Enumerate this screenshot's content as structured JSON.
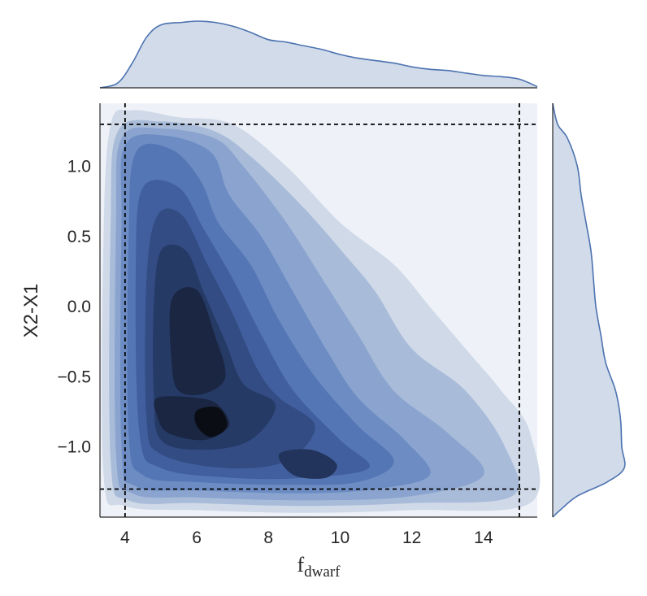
{
  "chart_data": {
    "type": "heatmap",
    "kind": "joint-kde-contour",
    "xlabel": "f",
    "xlabel_subscript": "dwarf",
    "ylabel": "X2-X1",
    "xlim": [
      3.3,
      15.5
    ],
    "ylim": [
      -1.5,
      1.45
    ],
    "xticks": [
      4,
      6,
      8,
      10,
      12,
      14
    ],
    "xtick_labels": [
      "4",
      "6",
      "8",
      "10",
      "12",
      "14"
    ],
    "yticks": [
      1.0,
      0.5,
      0.0,
      -0.5,
      -1.0
    ],
    "ytick_labels": [
      "1.0",
      "0.5",
      "0.0",
      "−0.5",
      "−1.0"
    ],
    "reference_lines": {
      "vertical_x": [
        4,
        15
      ],
      "horizontal_y": [
        1.3,
        -1.3
      ],
      "style": "dashed",
      "color": "#000000"
    },
    "marginal_x": {
      "points": [
        [
          3.3,
          0.0
        ],
        [
          3.8,
          0.04
        ],
        [
          4.2,
          0.2
        ],
        [
          4.6,
          0.41
        ],
        [
          5.0,
          0.51
        ],
        [
          5.6,
          0.53
        ],
        [
          6.0,
          0.54
        ],
        [
          6.5,
          0.53
        ],
        [
          7.0,
          0.5
        ],
        [
          7.5,
          0.45
        ],
        [
          8.0,
          0.39
        ],
        [
          8.5,
          0.37
        ],
        [
          9.0,
          0.34
        ],
        [
          9.5,
          0.31
        ],
        [
          10.0,
          0.27
        ],
        [
          10.5,
          0.24
        ],
        [
          11.0,
          0.22
        ],
        [
          11.5,
          0.2
        ],
        [
          12.0,
          0.17
        ],
        [
          12.5,
          0.15
        ],
        [
          13.0,
          0.14
        ],
        [
          13.5,
          0.12
        ],
        [
          14.0,
          0.1
        ],
        [
          14.5,
          0.09
        ],
        [
          15.0,
          0.07
        ],
        [
          15.5,
          0.01
        ]
      ]
    },
    "marginal_y": {
      "points": [
        [
          1.45,
          0.0
        ],
        [
          1.3,
          0.04
        ],
        [
          1.2,
          0.12
        ],
        [
          1.0,
          0.2
        ],
        [
          0.8,
          0.23
        ],
        [
          0.6,
          0.27
        ],
        [
          0.4,
          0.31
        ],
        [
          0.2,
          0.33
        ],
        [
          0.0,
          0.35
        ],
        [
          -0.2,
          0.39
        ],
        [
          -0.4,
          0.43
        ],
        [
          -0.6,
          0.51
        ],
        [
          -0.8,
          0.55
        ],
        [
          -1.0,
          0.56
        ],
        [
          -1.15,
          0.58
        ],
        [
          -1.25,
          0.44
        ],
        [
          -1.35,
          0.2
        ],
        [
          -1.45,
          0.06
        ],
        [
          -1.5,
          0.0
        ]
      ]
    },
    "contour_levels": [
      {
        "level": 1,
        "color": "#cfd9e8",
        "polygon": [
          [
            3.6,
            1.3
          ],
          [
            4.2,
            1.4
          ],
          [
            5.5,
            1.35
          ],
          [
            7.0,
            1.3
          ],
          [
            8.5,
            1.0
          ],
          [
            10.0,
            0.6
          ],
          [
            11.5,
            0.3
          ],
          [
            12.5,
            0.0
          ],
          [
            13.5,
            -0.3
          ],
          [
            14.5,
            -0.6
          ],
          [
            15.3,
            -0.9
          ],
          [
            15.3,
            -1.4
          ],
          [
            12.0,
            -1.45
          ],
          [
            9.0,
            -1.47
          ],
          [
            6.0,
            -1.45
          ],
          [
            4.0,
            -1.42
          ],
          [
            3.4,
            -1.2
          ],
          [
            3.4,
            0.5
          ]
        ]
      },
      {
        "level": 2,
        "color": "#a8bbd9",
        "polygon": [
          [
            3.8,
            1.25
          ],
          [
            5.0,
            1.32
          ],
          [
            6.5,
            1.25
          ],
          [
            7.6,
            1.05
          ],
          [
            9.0,
            0.7
          ],
          [
            10.2,
            0.35
          ],
          [
            11.0,
            0.1
          ],
          [
            12.0,
            -0.3
          ],
          [
            13.5,
            -0.6
          ],
          [
            14.6,
            -1.0
          ],
          [
            14.8,
            -1.35
          ],
          [
            12.0,
            -1.4
          ],
          [
            9.0,
            -1.42
          ],
          [
            6.0,
            -1.4
          ],
          [
            4.1,
            -1.38
          ],
          [
            3.6,
            -1.1
          ],
          [
            3.6,
            0.6
          ]
        ]
      },
      {
        "level": 3,
        "color": "#8aa4cf",
        "polygon": [
          [
            3.9,
            1.2
          ],
          [
            5.0,
            1.27
          ],
          [
            6.5,
            1.2
          ],
          [
            7.3,
            1.0
          ],
          [
            8.5,
            0.6
          ],
          [
            9.5,
            0.2
          ],
          [
            10.5,
            -0.2
          ],
          [
            11.5,
            -0.6
          ],
          [
            13.0,
            -0.9
          ],
          [
            14.0,
            -1.2
          ],
          [
            12.0,
            -1.35
          ],
          [
            9.0,
            -1.38
          ],
          [
            6.0,
            -1.36
          ],
          [
            4.2,
            -1.33
          ],
          [
            3.75,
            -1.05
          ],
          [
            3.75,
            0.6
          ]
        ]
      },
      {
        "level": 4,
        "color": "#6c8cc3",
        "polygon": [
          [
            4.0,
            1.15
          ],
          [
            5.1,
            1.22
          ],
          [
            6.4,
            1.1
          ],
          [
            6.9,
            0.8
          ],
          [
            7.8,
            0.5
          ],
          [
            8.7,
            0.1
          ],
          [
            9.6,
            -0.3
          ],
          [
            10.5,
            -0.65
          ],
          [
            11.8,
            -0.95
          ],
          [
            12.5,
            -1.2
          ],
          [
            11.0,
            -1.3
          ],
          [
            9.0,
            -1.33
          ],
          [
            6.0,
            -1.31
          ],
          [
            4.3,
            -1.28
          ],
          [
            3.9,
            -1.0
          ],
          [
            3.9,
            0.6
          ]
        ]
      },
      {
        "level": 5,
        "color": "#5476b4",
        "polygon": [
          [
            4.3,
            1.1
          ],
          [
            5.3,
            1.12
          ],
          [
            6.1,
            0.9
          ],
          [
            6.6,
            0.6
          ],
          [
            7.5,
            0.3
          ],
          [
            8.3,
            -0.1
          ],
          [
            9.3,
            -0.5
          ],
          [
            10.5,
            -0.85
          ],
          [
            11.5,
            -1.1
          ],
          [
            10.5,
            -1.25
          ],
          [
            8.5,
            -1.27
          ],
          [
            6.0,
            -1.25
          ],
          [
            4.5,
            -1.2
          ],
          [
            4.1,
            -0.9
          ],
          [
            4.1,
            0.5
          ]
        ]
      },
      {
        "level": 6,
        "color": "#415f9e",
        "polygon": [
          [
            4.5,
            0.85
          ],
          [
            5.5,
            0.85
          ],
          [
            6.2,
            0.55
          ],
          [
            7.0,
            0.2
          ],
          [
            7.8,
            -0.2
          ],
          [
            8.7,
            -0.6
          ],
          [
            10.0,
            -0.95
          ],
          [
            10.8,
            -1.15
          ],
          [
            9.0,
            -1.22
          ],
          [
            7.0,
            -1.22
          ],
          [
            5.0,
            -1.15
          ],
          [
            4.4,
            -0.9
          ],
          [
            4.3,
            0.3
          ]
        ]
      },
      {
        "level": 7,
        "color": "#334c84",
        "polygon": [
          [
            4.9,
            0.65
          ],
          [
            5.6,
            0.65
          ],
          [
            6.3,
            0.3
          ],
          [
            7.0,
            -0.05
          ],
          [
            7.7,
            -0.45
          ],
          [
            8.3,
            -0.65
          ],
          [
            9.3,
            -0.85
          ],
          [
            8.5,
            -1.1
          ],
          [
            6.8,
            -1.15
          ],
          [
            5.0,
            -1.05
          ],
          [
            4.6,
            -0.8
          ],
          [
            4.6,
            0.2
          ]
        ]
      },
      {
        "level": 8,
        "color": "#263a66",
        "polygon": [
          [
            5.0,
            0.4
          ],
          [
            5.7,
            0.4
          ],
          [
            6.2,
            0.1
          ],
          [
            6.8,
            -0.25
          ],
          [
            7.3,
            -0.55
          ],
          [
            8.2,
            -0.7
          ],
          [
            7.5,
            -0.95
          ],
          [
            6.2,
            -1.02
          ],
          [
            5.0,
            -0.95
          ],
          [
            4.8,
            -0.6
          ],
          [
            4.8,
            0.0
          ]
        ]
      },
      {
        "level": 9,
        "color": "#1a2642",
        "polygon": [
          [
            5.3,
            0.05
          ],
          [
            6.0,
            0.12
          ],
          [
            6.5,
            -0.2
          ],
          [
            6.8,
            -0.5
          ],
          [
            6.2,
            -0.62
          ],
          [
            5.5,
            -0.6
          ],
          [
            5.3,
            -0.4
          ]
        ]
      },
      {
        "level": 9,
        "color": "#1a2642",
        "polygon": [
          [
            4.9,
            -0.65
          ],
          [
            6.0,
            -0.65
          ],
          [
            6.6,
            -0.7
          ],
          [
            6.9,
            -0.85
          ],
          [
            6.2,
            -0.95
          ],
          [
            5.2,
            -0.9
          ],
          [
            4.9,
            -0.78
          ]
        ]
      },
      {
        "level": 9,
        "color": "#22345c",
        "polygon": [
          [
            8.3,
            -1.05
          ],
          [
            9.2,
            -1.02
          ],
          [
            9.9,
            -1.12
          ],
          [
            9.6,
            -1.22
          ],
          [
            8.7,
            -1.2
          ]
        ]
      },
      {
        "level": 10,
        "color": "#0a0d14",
        "polygon": [
          [
            6.0,
            -0.74
          ],
          [
            6.6,
            -0.72
          ],
          [
            6.85,
            -0.85
          ],
          [
            6.4,
            -0.93
          ],
          [
            6.0,
            -0.85
          ]
        ]
      }
    ]
  }
}
